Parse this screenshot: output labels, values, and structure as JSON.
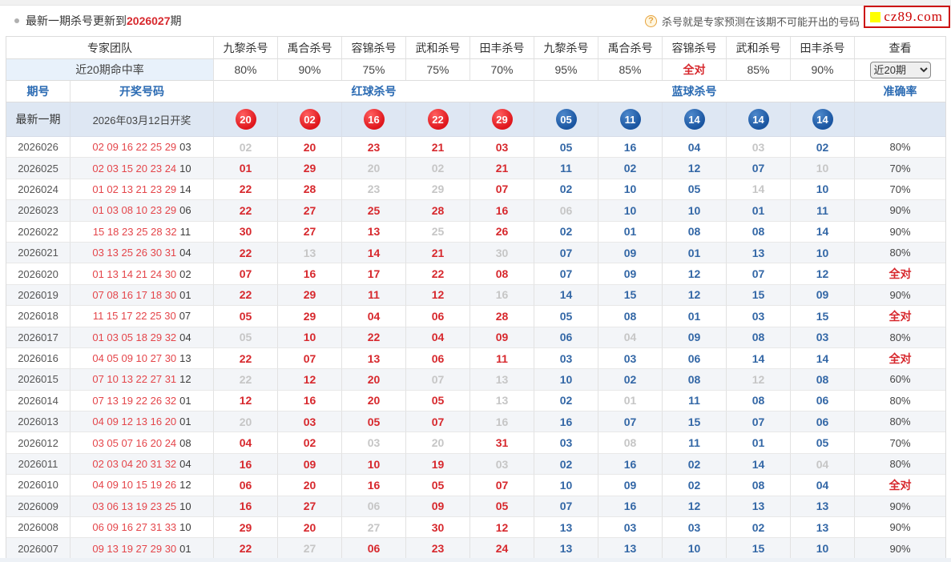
{
  "page": {
    "title_prefix": "最新一期杀号更新到",
    "title_period": "2026027",
    "title_suffix": "期",
    "tip_icon": "?",
    "tip": "杀号就是专家预测在该期不可能开出的号码",
    "logo_text": "cz89.com"
  },
  "filters": {
    "range_select": "近20期"
  },
  "colors": {
    "red": "#d7282d",
    "blue": "#3367a6",
    "gray": "#c6c6c6",
    "red_ball": "#df161c",
    "blue_ball": "#1a55a0"
  },
  "table": {
    "expert_cols": [
      "专家团队",
      "九黎杀号",
      "禹合杀号",
      "容锦杀号",
      "武和杀号",
      "田丰杀号",
      "九黎杀号",
      "禹合杀号",
      "容锦杀号",
      "武和杀号",
      "田丰杀号",
      "查看"
    ],
    "hit_rate_label": "近20期命中率",
    "hit_rates": [
      "80%",
      "90%",
      "75%",
      "75%",
      "70%",
      "95%",
      "85%",
      "全对",
      "85%",
      "90%"
    ],
    "sub_headers": {
      "period": "期号",
      "draw": "开奖号码",
      "red_kill": "红球杀号",
      "blue_kill": "蓝球杀号",
      "accuracy": "准确率"
    },
    "latest": {
      "label": "最新一期",
      "draw_date": "2026年03月12日开奖",
      "red_balls": [
        "20",
        "02",
        "16",
        "22",
        "29"
      ],
      "blue_balls": [
        "05",
        "11",
        "14",
        "14",
        "14"
      ]
    },
    "rows": [
      {
        "period": "2026026",
        "draw_red": "02 09 16 22 25 29",
        "draw_blue": "03",
        "red": [
          "02",
          "20",
          "23",
          "21",
          "03"
        ],
        "red_gray": [
          0
        ],
        "blue": [
          "05",
          "16",
          "04",
          "03",
          "02"
        ],
        "blue_gray": [
          3
        ],
        "accuracy": "80%",
        "accuracy_all": false
      },
      {
        "period": "2026025",
        "draw_red": "02 03 15 20 23 24",
        "draw_blue": "10",
        "red": [
          "01",
          "29",
          "20",
          "02",
          "21"
        ],
        "red_gray": [
          2,
          3
        ],
        "blue": [
          "11",
          "02",
          "12",
          "07",
          "10"
        ],
        "blue_gray": [
          4
        ],
        "accuracy": "70%",
        "accuracy_all": false
      },
      {
        "period": "2026024",
        "draw_red": "01 02 13 21 23 29",
        "draw_blue": "14",
        "red": [
          "22",
          "28",
          "23",
          "29",
          "07"
        ],
        "red_gray": [
          2,
          3
        ],
        "blue": [
          "02",
          "10",
          "05",
          "14",
          "10"
        ],
        "blue_gray": [
          3
        ],
        "accuracy": "70%",
        "accuracy_all": false
      },
      {
        "period": "2026023",
        "draw_red": "01 03 08 10 23 29",
        "draw_blue": "06",
        "red": [
          "22",
          "27",
          "25",
          "28",
          "16"
        ],
        "red_gray": [],
        "blue": [
          "06",
          "10",
          "10",
          "01",
          "11"
        ],
        "blue_gray": [
          0
        ],
        "accuracy": "90%",
        "accuracy_all": false
      },
      {
        "period": "2026022",
        "draw_red": "15 18 23 25 28 32",
        "draw_blue": "11",
        "red": [
          "30",
          "27",
          "13",
          "25",
          "26"
        ],
        "red_gray": [
          3
        ],
        "blue": [
          "02",
          "01",
          "08",
          "08",
          "14"
        ],
        "blue_gray": [],
        "accuracy": "90%",
        "accuracy_all": false
      },
      {
        "period": "2026021",
        "draw_red": "03 13 25 26 30 31",
        "draw_blue": "04",
        "red": [
          "22",
          "13",
          "14",
          "21",
          "30"
        ],
        "red_gray": [
          1,
          4
        ],
        "blue": [
          "07",
          "09",
          "01",
          "13",
          "10"
        ],
        "blue_gray": [],
        "accuracy": "80%",
        "accuracy_all": false
      },
      {
        "period": "2026020",
        "draw_red": "01 13 14 21 24 30",
        "draw_blue": "02",
        "red": [
          "07",
          "16",
          "17",
          "22",
          "08"
        ],
        "red_gray": [],
        "blue": [
          "07",
          "09",
          "12",
          "07",
          "12"
        ],
        "blue_gray": [],
        "accuracy": "全对",
        "accuracy_all": true
      },
      {
        "period": "2026019",
        "draw_red": "07 08 16 17 18 30",
        "draw_blue": "01",
        "red": [
          "22",
          "29",
          "11",
          "12",
          "16"
        ],
        "red_gray": [
          4
        ],
        "blue": [
          "14",
          "15",
          "12",
          "15",
          "09"
        ],
        "blue_gray": [],
        "accuracy": "90%",
        "accuracy_all": false
      },
      {
        "period": "2026018",
        "draw_red": "11 15 17 22 25 30",
        "draw_blue": "07",
        "red": [
          "05",
          "29",
          "04",
          "06",
          "28"
        ],
        "red_gray": [],
        "blue": [
          "05",
          "08",
          "01",
          "03",
          "15"
        ],
        "blue_gray": [],
        "accuracy": "全对",
        "accuracy_all": true
      },
      {
        "period": "2026017",
        "draw_red": "01 03 05 18 29 32",
        "draw_blue": "04",
        "red": [
          "05",
          "10",
          "22",
          "04",
          "09"
        ],
        "red_gray": [
          0
        ],
        "blue": [
          "06",
          "04",
          "09",
          "08",
          "03"
        ],
        "blue_gray": [
          1
        ],
        "accuracy": "80%",
        "accuracy_all": false
      },
      {
        "period": "2026016",
        "draw_red": "04 05 09 10 27 30",
        "draw_blue": "13",
        "red": [
          "22",
          "07",
          "13",
          "06",
          "11"
        ],
        "red_gray": [],
        "blue": [
          "03",
          "03",
          "06",
          "14",
          "14"
        ],
        "blue_gray": [],
        "accuracy": "全对",
        "accuracy_all": true
      },
      {
        "period": "2026015",
        "draw_red": "07 10 13 22 27 31",
        "draw_blue": "12",
        "red": [
          "22",
          "12",
          "20",
          "07",
          "13"
        ],
        "red_gray": [
          0,
          3,
          4
        ],
        "blue": [
          "10",
          "02",
          "08",
          "12",
          "08"
        ],
        "blue_gray": [
          3
        ],
        "accuracy": "60%",
        "accuracy_all": false
      },
      {
        "period": "2026014",
        "draw_red": "07 13 19 22 26 32",
        "draw_blue": "01",
        "red": [
          "12",
          "16",
          "20",
          "05",
          "13"
        ],
        "red_gray": [
          4
        ],
        "blue": [
          "02",
          "01",
          "11",
          "08",
          "06"
        ],
        "blue_gray": [
          1
        ],
        "accuracy": "80%",
        "accuracy_all": false
      },
      {
        "period": "2026013",
        "draw_red": "04 09 12 13 16 20",
        "draw_blue": "01",
        "red": [
          "20",
          "03",
          "05",
          "07",
          "16"
        ],
        "red_gray": [
          0,
          4
        ],
        "blue": [
          "16",
          "07",
          "15",
          "07",
          "06"
        ],
        "blue_gray": [],
        "accuracy": "80%",
        "accuracy_all": false
      },
      {
        "period": "2026012",
        "draw_red": "03 05 07 16 20 24",
        "draw_blue": "08",
        "red": [
          "04",
          "02",
          "03",
          "20",
          "31"
        ],
        "red_gray": [
          2,
          3
        ],
        "blue": [
          "03",
          "08",
          "11",
          "01",
          "05"
        ],
        "blue_gray": [
          1
        ],
        "accuracy": "70%",
        "accuracy_all": false
      },
      {
        "period": "2026011",
        "draw_red": "02 03 04 20 31 32",
        "draw_blue": "04",
        "red": [
          "16",
          "09",
          "10",
          "19",
          "03"
        ],
        "red_gray": [
          4
        ],
        "blue": [
          "02",
          "16",
          "02",
          "14",
          "04"
        ],
        "blue_gray": [
          4
        ],
        "accuracy": "80%",
        "accuracy_all": false
      },
      {
        "period": "2026010",
        "draw_red": "04 09 10 15 19 26",
        "draw_blue": "12",
        "red": [
          "06",
          "20",
          "16",
          "05",
          "07"
        ],
        "red_gray": [],
        "blue": [
          "10",
          "09",
          "02",
          "08",
          "04"
        ],
        "blue_gray": [],
        "accuracy": "全对",
        "accuracy_all": true
      },
      {
        "period": "2026009",
        "draw_red": "03 06 13 19 23 25",
        "draw_blue": "10",
        "red": [
          "16",
          "27",
          "06",
          "09",
          "05"
        ],
        "red_gray": [
          2
        ],
        "blue": [
          "07",
          "16",
          "12",
          "13",
          "13"
        ],
        "blue_gray": [],
        "accuracy": "90%",
        "accuracy_all": false
      },
      {
        "period": "2026008",
        "draw_red": "06 09 16 27 31 33",
        "draw_blue": "10",
        "red": [
          "29",
          "20",
          "27",
          "30",
          "12"
        ],
        "red_gray": [
          2
        ],
        "blue": [
          "13",
          "03",
          "03",
          "02",
          "13"
        ],
        "blue_gray": [],
        "accuracy": "90%",
        "accuracy_all": false
      },
      {
        "period": "2026007",
        "draw_red": "09 13 19 27 29 30",
        "draw_blue": "01",
        "red": [
          "22",
          "27",
          "06",
          "23",
          "24"
        ],
        "red_gray": [
          1
        ],
        "blue": [
          "13",
          "13",
          "10",
          "15",
          "10"
        ],
        "blue_gray": [],
        "accuracy": "90%",
        "accuracy_all": false
      }
    ]
  }
}
